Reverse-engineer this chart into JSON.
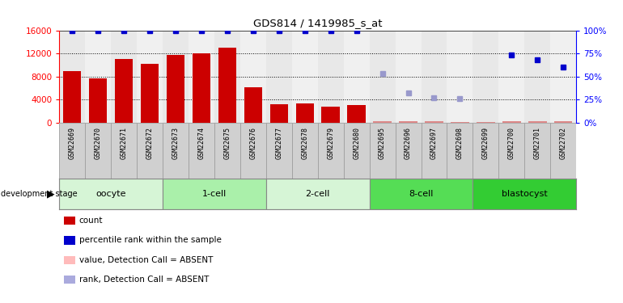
{
  "title": "GDS814 / 1419985_s_at",
  "samples": [
    "GSM22669",
    "GSM22670",
    "GSM22671",
    "GSM22672",
    "GSM22673",
    "GSM22674",
    "GSM22675",
    "GSM22676",
    "GSM22677",
    "GSM22678",
    "GSM22679",
    "GSM22680",
    "GSM22695",
    "GSM22696",
    "GSM22697",
    "GSM22698",
    "GSM22699",
    "GSM22700",
    "GSM22701",
    "GSM22702"
  ],
  "count_values": [
    9000,
    7700,
    11000,
    10200,
    11700,
    12000,
    13000,
    6100,
    3200,
    3400,
    2800,
    3000,
    200,
    300,
    200,
    150,
    100,
    200,
    200,
    250
  ],
  "count_absent": [
    false,
    false,
    false,
    false,
    false,
    false,
    false,
    false,
    false,
    false,
    false,
    false,
    true,
    true,
    true,
    true,
    true,
    true,
    true,
    true
  ],
  "rank_values": [
    100,
    100,
    100,
    100,
    100,
    100,
    100,
    100,
    100,
    100,
    100,
    100,
    null,
    null,
    null,
    null,
    null,
    73,
    68,
    60
  ],
  "rank_absent_values": [
    null,
    null,
    null,
    null,
    null,
    null,
    null,
    null,
    null,
    null,
    null,
    null,
    53,
    32,
    27,
    26,
    null,
    null,
    null,
    null
  ],
  "stages": [
    {
      "label": "oocyte",
      "start": 0,
      "end": 4,
      "color": "#d6f5d6"
    },
    {
      "label": "1-cell",
      "start": 4,
      "end": 8,
      "color": "#aaf0aa"
    },
    {
      "label": "2-cell",
      "start": 8,
      "end": 12,
      "color": "#d6f5d6"
    },
    {
      "label": "8-cell",
      "start": 12,
      "end": 16,
      "color": "#55dd55"
    },
    {
      "label": "blastocyst",
      "start": 16,
      "end": 20,
      "color": "#33cc33"
    }
  ],
  "ylim_left": [
    0,
    16000
  ],
  "ylim_right": [
    0,
    100
  ],
  "yticks_left": [
    0,
    4000,
    8000,
    12000,
    16000
  ],
  "yticks_right": [
    0,
    25,
    50,
    75,
    100
  ],
  "bar_color": "#cc0000",
  "bar_absent_color": "#dd8888",
  "rank_color": "#0000cc",
  "rank_absent_color": "#9999cc",
  "col_bg_even": "#e8e8e8",
  "col_bg_odd": "#f0f0f0",
  "legend_items": [
    {
      "color": "#cc0000",
      "label": "count"
    },
    {
      "color": "#0000cc",
      "label": "percentile rank within the sample"
    },
    {
      "color": "#ffbbbb",
      "label": "value, Detection Call = ABSENT"
    },
    {
      "color": "#aaaadd",
      "label": "rank, Detection Call = ABSENT"
    }
  ]
}
